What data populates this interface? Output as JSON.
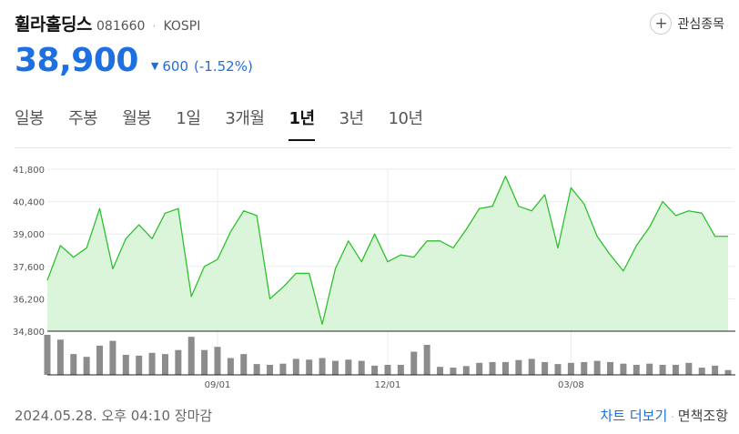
{
  "stock": {
    "name": "휠라홀딩스",
    "code": "081660",
    "separator": "·",
    "market": "KOSPI",
    "price": "38,900",
    "change_arrow": "▼",
    "change": "600",
    "change_pct": "(-1.52%)",
    "change_color": "#1e6fe0"
  },
  "favorite": {
    "icon": "plus-icon",
    "symbol": "+",
    "label": "관심종목"
  },
  "tabs": [
    {
      "label": "일봉",
      "active": false
    },
    {
      "label": "주봉",
      "active": false
    },
    {
      "label": "월봉",
      "active": false
    },
    {
      "label": "1일",
      "active": false
    },
    {
      "label": "3개월",
      "active": false
    },
    {
      "label": "1년",
      "active": true
    },
    {
      "label": "3년",
      "active": false
    },
    {
      "label": "10년",
      "active": false
    }
  ],
  "footer": {
    "date": "2024.05.28. 오후 04:10 장마감",
    "more_chart": "차트 더보기",
    "separator": "·",
    "disclaimer": "면책조항"
  },
  "chart_data": {
    "type": "area",
    "line_color": "#2ec02e",
    "fill_color": "#dbf5db",
    "volume_color": "#8c8c8c",
    "ylim": [
      34800,
      41800
    ],
    "yticks": [
      "41,800",
      "40,400",
      "39,000",
      "37,600",
      "36,200",
      "34,800"
    ],
    "ytick_values": [
      41800,
      40400,
      39000,
      37600,
      36200,
      34800
    ],
    "xticks": [
      {
        "label": "09/01",
        "index": 13
      },
      {
        "label": "12/01",
        "index": 26
      },
      {
        "label": "03/08",
        "index": 40
      }
    ],
    "grid": true,
    "values": [
      37000,
      38500,
      38000,
      38400,
      40100,
      37500,
      38800,
      39400,
      38800,
      39900,
      40100,
      36300,
      37600,
      37900,
      39100,
      40000,
      39800,
      36200,
      36700,
      37300,
      37300,
      35100,
      37500,
      38700,
      37800,
      39000,
      37800,
      38100,
      38000,
      38700,
      38700,
      38400,
      39200,
      40100,
      40200,
      41500,
      40200,
      40000,
      40700,
      38400,
      41000,
      40300,
      38900,
      38100,
      37400,
      38500,
      39300,
      40400,
      39800,
      40000,
      39900,
      38900,
      38900
    ],
    "volume": [
      100,
      88,
      52,
      45,
      73,
      85,
      50,
      48,
      55,
      52,
      62,
      95,
      62,
      70,
      42,
      52,
      27,
      25,
      28,
      40,
      38,
      42,
      35,
      38,
      35,
      23,
      25,
      25,
      58,
      75,
      20,
      18,
      22,
      30,
      32,
      32,
      37,
      40,
      32,
      27,
      30,
      32,
      35,
      32,
      28,
      25,
      28,
      25,
      25,
      30,
      18,
      23,
      12
    ]
  }
}
